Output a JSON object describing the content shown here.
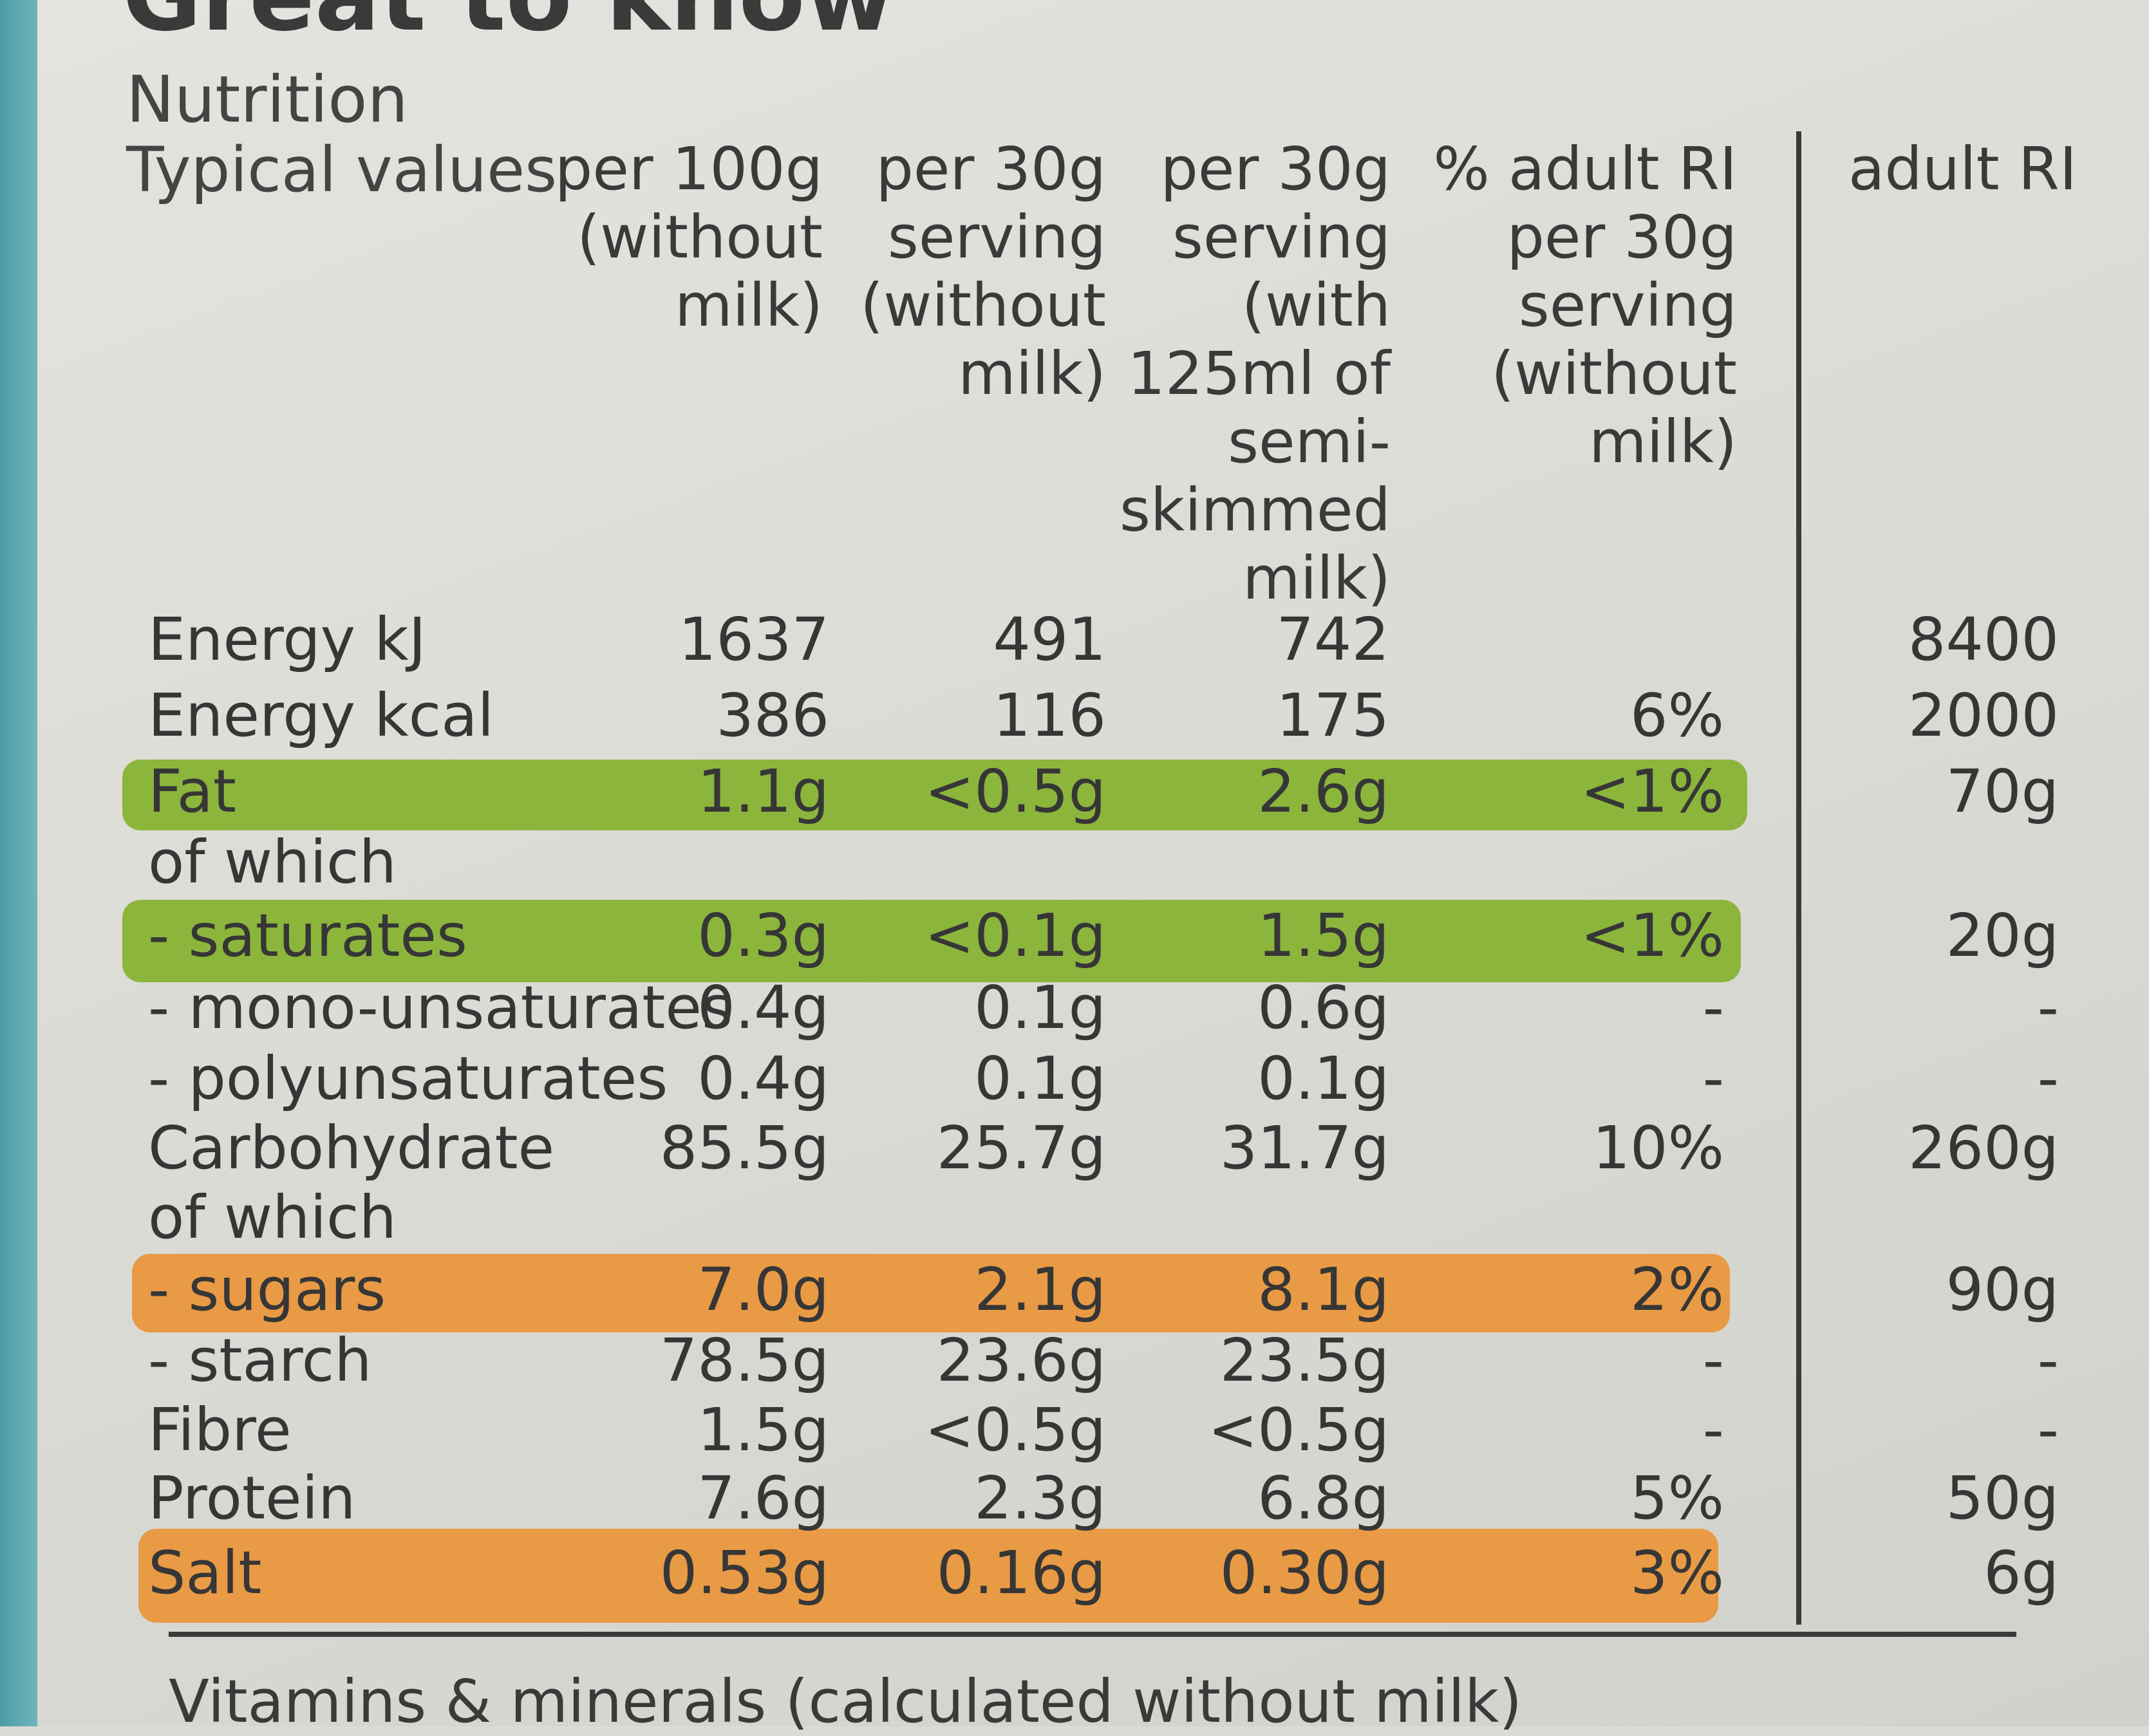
{
  "header_fragment": "Great to know",
  "title": "Nutrition",
  "typical_label": "Typical values",
  "columns": [
    "per 100g\n(without\nmilk)",
    "per 30g\nserving\n(without\nmilk)",
    "per 30g\nserving\n(with\n125ml of\nsemi-\nskimmed\nmilk)",
    "% adult RI\nper 30g\nserving\n(without\nmilk)",
    "adult RI"
  ],
  "rows": [
    {
      "label": "Energy kJ",
      "per100g": "1637",
      "per30g": "491",
      "with_milk": "742",
      "ri_pct": "",
      "adult_ri": "8400"
    },
    {
      "label": "Energy kcal",
      "per100g": "386",
      "per30g": "116",
      "with_milk": "175",
      "ri_pct": "6%",
      "adult_ri": "2000"
    },
    {
      "label": "Fat",
      "per100g": "1.1g",
      "per30g": "<0.5g",
      "with_milk": "2.6g",
      "ri_pct": "<1%",
      "adult_ri": "70g"
    },
    {
      "label": "of which",
      "per100g": "",
      "per30g": "",
      "with_milk": "",
      "ri_pct": "",
      "adult_ri": ""
    },
    {
      "label": "- saturates",
      "per100g": "0.3g",
      "per30g": "<0.1g",
      "with_milk": "1.5g",
      "ri_pct": "<1%",
      "adult_ri": "20g"
    },
    {
      "label": "- mono-unsaturates",
      "per100g": "0.4g",
      "per30g": "0.1g",
      "with_milk": "0.6g",
      "ri_pct": "-",
      "adult_ri": "-"
    },
    {
      "label": "- polyunsaturates",
      "per100g": "0.4g",
      "per30g": "0.1g",
      "with_milk": "0.1g",
      "ri_pct": "-",
      "adult_ri": "-"
    },
    {
      "label": "Carbohydrate",
      "per100g": "85.5g",
      "per30g": "25.7g",
      "with_milk": "31.7g",
      "ri_pct": "10%",
      "adult_ri": "260g"
    },
    {
      "label": "of which",
      "per100g": "",
      "per30g": "",
      "with_milk": "",
      "ri_pct": "",
      "adult_ri": ""
    },
    {
      "label": "- sugars",
      "per100g": "7.0g",
      "per30g": "2.1g",
      "with_milk": "8.1g",
      "ri_pct": "2%",
      "adult_ri": "90g"
    },
    {
      "label": "- starch",
      "per100g": "78.5g",
      "per30g": "23.6g",
      "with_milk": "23.5g",
      "ri_pct": "-",
      "adult_ri": "-"
    },
    {
      "label": "Fibre",
      "per100g": "1.5g",
      "per30g": "<0.5g",
      "with_milk": "<0.5g",
      "ri_pct": "-",
      "adult_ri": "-"
    },
    {
      "label": "Protein",
      "per100g": "7.6g",
      "per30g": "2.3g",
      "with_milk": "6.8g",
      "ri_pct": "5%",
      "adult_ri": "50g"
    },
    {
      "label": "Salt",
      "per100g": "0.53g",
      "per30g": "0.16g",
      "with_milk": "0.30g",
      "ri_pct": "3%",
      "adult_ri": "6g"
    }
  ],
  "footer": "Vitamins & minerals (calculated without milk)",
  "colors": {
    "green_band": "#8cb53c",
    "orange_band": "#e99a45",
    "teal_strip": "#5aa6ae"
  }
}
